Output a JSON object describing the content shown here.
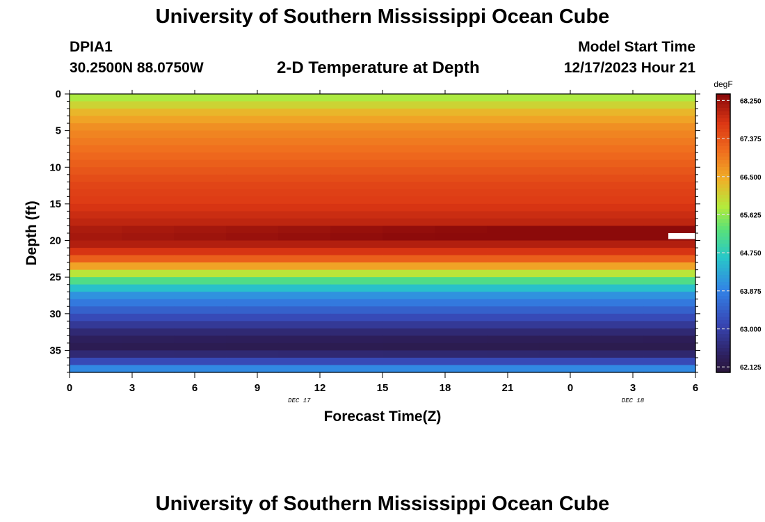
{
  "title": "University of Southern Mississippi Ocean Cube",
  "station": {
    "id": "DPIA1",
    "coords": "30.2500N  88.0750W"
  },
  "subtitle": "2-D Temperature at Depth",
  "model_start": {
    "label": "Model Start Time",
    "value": "12/17/2023 Hour 21"
  },
  "footer_title": "University of Southern Mississippi Ocean Cube",
  "chart_data": {
    "type": "heatmap",
    "title": "2-D Temperature at Depth",
    "xlabel": "Forecast Time(Z)",
    "ylabel": "Depth (ft)",
    "x_ticks": [
      "0",
      "3",
      "6",
      "9",
      "12",
      "15",
      "18",
      "21",
      "0",
      "3",
      "6"
    ],
    "x_date_labels": [
      {
        "tick_index": 3.67,
        "label": "DEC 17"
      },
      {
        "tick_index": 9.0,
        "label": "DEC 18"
      }
    ],
    "y_ticks": [
      0,
      5,
      10,
      15,
      20,
      25,
      30,
      35
    ],
    "ylim": [
      0,
      38
    ],
    "x_range_hours": [
      0,
      30
    ],
    "colorbar": {
      "unit": "degF",
      "range": [
        62.0,
        68.4
      ],
      "labels": [
        "68.250",
        "67.375",
        "66.500",
        "65.625",
        "64.750",
        "63.875",
        "63.000",
        "62.125"
      ]
    },
    "profile": {
      "depths_ft": [
        0,
        1,
        2,
        3,
        4,
        5,
        6,
        7,
        8,
        9,
        10,
        11,
        12,
        13,
        14,
        15,
        16,
        17,
        18,
        19,
        20,
        21,
        22,
        23,
        24,
        25,
        26,
        27,
        28,
        29,
        30,
        31,
        32,
        33,
        34,
        35,
        36,
        37
      ],
      "temps_degF": [
        65.8,
        66.1,
        66.4,
        66.6,
        66.8,
        66.9,
        67.0,
        67.1,
        67.2,
        67.3,
        67.4,
        67.5,
        67.6,
        67.65,
        67.7,
        67.8,
        67.9,
        68.0,
        68.15,
        68.2,
        68.1,
        67.8,
        67.3,
        66.6,
        65.9,
        65.2,
        64.6,
        64.1,
        63.8,
        63.5,
        63.2,
        62.9,
        62.6,
        62.4,
        62.3,
        62.6,
        63.2,
        64.0
      ]
    },
    "hot_band": {
      "depths_ft": [
        18,
        19
      ],
      "extra_warming_degF": 0.35
    },
    "missing_cell": {
      "depth_ft": 19,
      "hours": [
        28.7,
        30
      ]
    }
  }
}
